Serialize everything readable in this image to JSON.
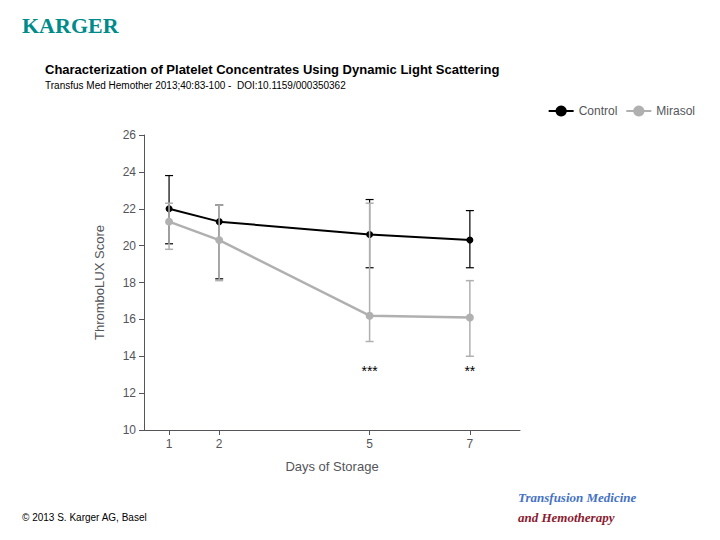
{
  "chart_data": {
    "type": "line",
    "title": "Characterization of Platelet Concentrates Using Dynamic Light Scattering",
    "subtitle": "Transfus Med Hemother 2013;40:83-100 -  DOI:10.1159/000350362",
    "xlabel": "Days of Storage",
    "ylabel": "ThromboLUX Score",
    "x": [
      1,
      2,
      5,
      7
    ],
    "series": [
      {
        "name": "Control",
        "color": "#000000",
        "marker": "circle",
        "line_style": "solid",
        "values": [
          22.0,
          21.3,
          20.6,
          20.3
        ],
        "lower": [
          20.1,
          18.2,
          18.8,
          18.8
        ],
        "upper": [
          23.8,
          22.2,
          22.5,
          21.9
        ]
      },
      {
        "name": "Mirasol",
        "color": "#b0b0b0",
        "marker": "circle",
        "line_style": "solid",
        "values": [
          21.3,
          20.3,
          16.2,
          16.1
        ],
        "lower": [
          19.8,
          18.1,
          14.8,
          14.0
        ],
        "upper": [
          22.3,
          22.2,
          22.3,
          18.1
        ]
      }
    ],
    "xlim": [
      0.5,
      8.0
    ],
    "xticks": [
      1,
      2,
      5,
      7
    ],
    "ylim": [
      10,
      26
    ],
    "yticks": [
      10,
      12,
      14,
      16,
      18,
      20,
      22,
      24,
      26
    ],
    "grid": false,
    "legend": "upper right",
    "annotations": [
      {
        "x": 5,
        "y": 13.2,
        "text": "***"
      },
      {
        "x": 7,
        "y": 13.2,
        "text": "**"
      }
    ],
    "logo": {
      "text": "KARGER",
      "color": "#008B8B"
    },
    "copyright": "© 2013 S. Karger AG, Basel",
    "journal": [
      {
        "text": "Transfusion Medicine",
        "color": "#4472C4"
      },
      {
        "text": "and Hemotherapy",
        "color": "#8B1A2F"
      }
    ]
  }
}
